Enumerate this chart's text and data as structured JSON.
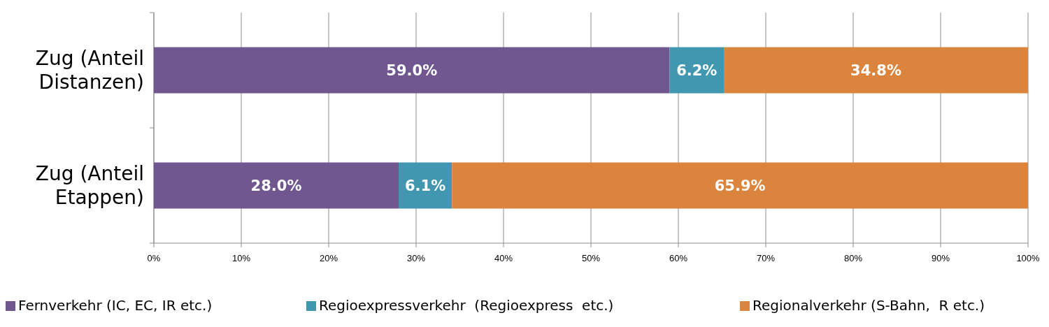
{
  "chart_data": {
    "type": "bar",
    "orientation": "horizontal",
    "stacked": true,
    "categories": [
      "Zug (Anteil Distanzen)",
      "Zug (Anteil Etappen)"
    ],
    "series": [
      {
        "name": "Fernverkehr (IC, EC, IR etc.)",
        "color": "#70578f",
        "values": [
          59.0,
          28.0
        ],
        "value_labels": [
          "59.0%",
          "28.0%"
        ]
      },
      {
        "name": "Regioexpressverkehr  (Regioexpress  etc.)",
        "color": "#4197b0",
        "values": [
          6.2,
          6.1
        ],
        "value_labels": [
          "6.2%",
          "6.1%"
        ]
      },
      {
        "name": "Regionalverkehr (S-Bahn,  R etc.)",
        "color": "#db843d",
        "values": [
          34.8,
          65.9
        ],
        "value_labels": [
          "34.8%",
          "65.9%"
        ]
      }
    ],
    "xlim": [
      0,
      100
    ],
    "xticks": [
      {
        "value": 0,
        "label": "0%"
      },
      {
        "value": 10,
        "label": "10%"
      },
      {
        "value": 20,
        "label": "20%"
      },
      {
        "value": 30,
        "label": "30%"
      },
      {
        "value": 40,
        "label": "40%"
      },
      {
        "value": 50,
        "label": "50%"
      },
      {
        "value": 60,
        "label": "60%"
      },
      {
        "value": 70,
        "label": "70%"
      },
      {
        "value": 80,
        "label": "80%"
      },
      {
        "value": 90,
        "label": "90%"
      },
      {
        "value": 100,
        "label": "100%"
      }
    ],
    "grid": "x",
    "legend": "bottom"
  }
}
